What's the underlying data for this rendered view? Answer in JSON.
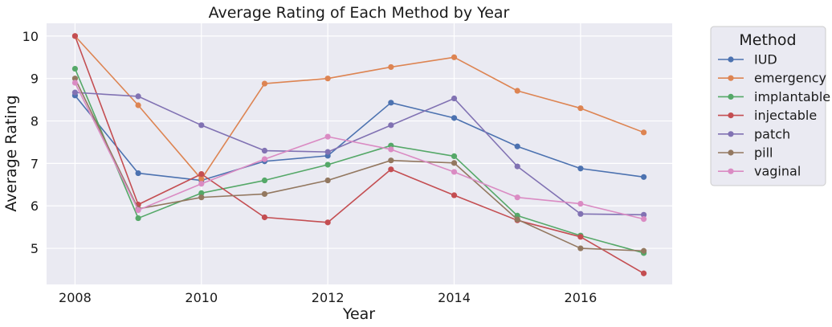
{
  "chart_data": {
    "type": "line",
    "title": "Average Rating of Each Method by Year",
    "xlabel": "Year",
    "ylabel": "Average Rating",
    "x": [
      2008,
      2009,
      2010,
      2011,
      2012,
      2013,
      2014,
      2015,
      2016,
      2017
    ],
    "xlim": [
      2007.55,
      2017.45
    ],
    "ylim": [
      4.15,
      10.3
    ],
    "xticks": [
      2008,
      2010,
      2012,
      2014,
      2016
    ],
    "yticks": [
      5,
      6,
      7,
      8,
      9,
      10
    ],
    "grid": true,
    "legend": {
      "title": "Method",
      "placement": "outside-right"
    },
    "series": [
      {
        "name": "IUD",
        "color": "#4c72b0",
        "values": [
          8.6,
          6.77,
          6.6,
          7.05,
          7.18,
          8.43,
          8.07,
          7.4,
          6.88,
          6.68
        ]
      },
      {
        "name": "emergency",
        "color": "#dd8452",
        "values": [
          10.0,
          8.37,
          6.63,
          8.88,
          9.0,
          9.27,
          9.5,
          8.71,
          8.3,
          7.73
        ]
      },
      {
        "name": "implantable",
        "color": "#55a868",
        "values": [
          9.23,
          5.71,
          6.3,
          6.6,
          6.97,
          7.42,
          7.17,
          5.77,
          5.3,
          4.89
        ]
      },
      {
        "name": "injectable",
        "color": "#c44e52",
        "values": [
          10.0,
          6.03,
          6.75,
          5.73,
          5.61,
          6.86,
          6.25,
          5.66,
          5.27,
          4.41
        ]
      },
      {
        "name": "patch",
        "color": "#8172b3",
        "values": [
          8.67,
          8.58,
          7.9,
          7.3,
          7.27,
          7.9,
          8.53,
          6.93,
          5.81,
          5.79
        ]
      },
      {
        "name": "pill",
        "color": "#937860",
        "values": [
          9.0,
          5.93,
          6.2,
          6.28,
          6.6,
          7.07,
          7.01,
          5.68,
          5.0,
          4.94
        ]
      },
      {
        "name": "vaginal",
        "color": "#da8bc3",
        "values": [
          8.9,
          5.9,
          6.52,
          7.1,
          7.63,
          7.33,
          6.8,
          6.2,
          6.05,
          5.69
        ]
      }
    ]
  },
  "style": {
    "plot_background": "#eaeaf2",
    "grid_color": "#ffffff",
    "legend_background": "#eaeaf2",
    "legend_border": "#cccccc"
  }
}
